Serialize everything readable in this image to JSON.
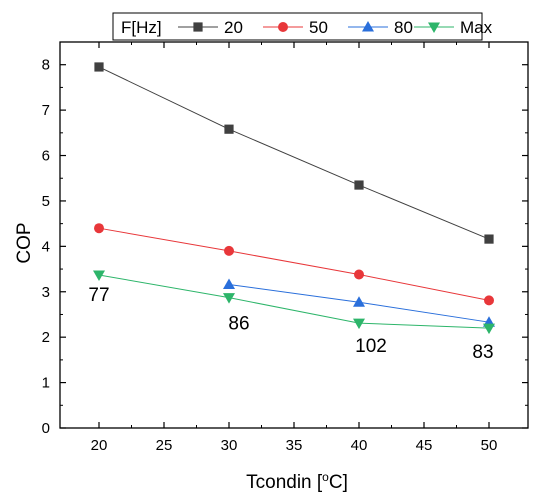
{
  "chart_data": {
    "type": "line",
    "xlabel": "Tcondin [",
    "xlabel_sup": "o",
    "xlabel_end": "C]",
    "ylabel": "COP",
    "xlim": [
      17,
      53
    ],
    "ylim": [
      0,
      8.5
    ],
    "xticks": [
      20,
      25,
      30,
      35,
      40,
      45,
      50
    ],
    "yticks": [
      0,
      1,
      2,
      3,
      4,
      5,
      6,
      7,
      8
    ],
    "grid": false,
    "legend_title": "F[Hz]",
    "legend_position": "top",
    "series": [
      {
        "name": "20",
        "color": "#404040",
        "marker": "square",
        "points": [
          [
            20,
            7.95
          ],
          [
            30,
            6.58
          ],
          [
            40,
            5.35
          ],
          [
            50,
            4.16
          ]
        ]
      },
      {
        "name": "50",
        "color": "#e8373a",
        "marker": "circle",
        "points": [
          [
            20,
            4.4
          ],
          [
            30,
            3.9
          ],
          [
            40,
            3.38
          ],
          [
            50,
            2.81
          ]
        ]
      },
      {
        "name": "80",
        "color": "#2a6fdb",
        "marker": "triangle-up",
        "points": [
          [
            30,
            3.16
          ],
          [
            40,
            2.77
          ],
          [
            50,
            2.33
          ]
        ]
      },
      {
        "name": "Max",
        "color": "#2db56a",
        "marker": "triangle-down",
        "points": [
          [
            20,
            3.37
          ],
          [
            30,
            2.87
          ],
          [
            40,
            2.31
          ],
          [
            50,
            2.2
          ]
        ]
      }
    ],
    "annotations": [
      {
        "text": "77",
        "x": 20,
        "y": 3.37
      },
      {
        "text": "86",
        "x": 30,
        "y": 2.87
      },
      {
        "text": "102",
        "x": 40,
        "y": 2.31
      },
      {
        "text": "83",
        "x": 50,
        "y": 2.2
      }
    ]
  }
}
